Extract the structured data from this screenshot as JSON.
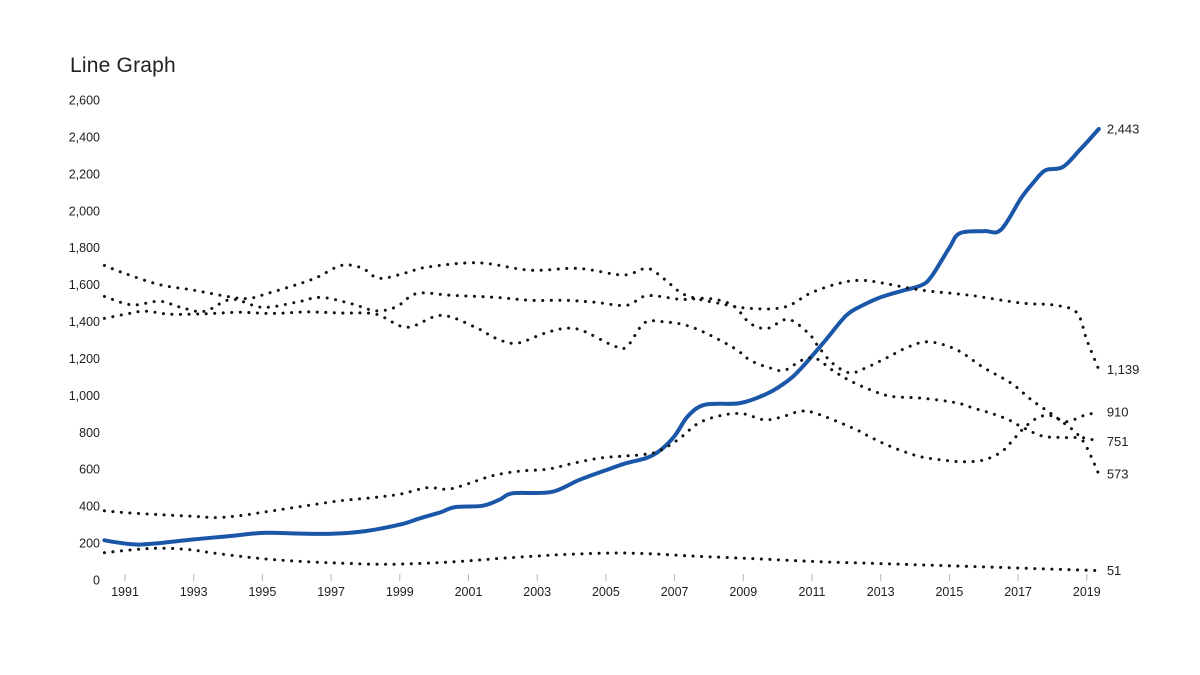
{
  "chart_data": {
    "type": "line",
    "title": "Line Graph",
    "colors": {
      "accent_blue": "#1b57a8",
      "dot_black": "#111111",
      "axis_text": "#212121",
      "tick_mark": "#b5b5b5"
    },
    "x_axis": {
      "range": [
        1990.4,
        2019.35
      ],
      "tick_years": [
        1991,
        1993,
        1995,
        1997,
        1999,
        2001,
        2003,
        2005,
        2007,
        2009,
        2011,
        2013,
        2015,
        2017,
        2019
      ],
      "tick_labels": [
        "1991",
        "1993",
        "1995",
        "1997",
        "1999",
        "2001",
        "2003",
        "2005",
        "2007",
        "2009",
        "2011",
        "2013",
        "2015",
        "2017",
        "2019"
      ]
    },
    "y_axis": {
      "min": 0,
      "max": 2600,
      "step": 200,
      "tick_values": [
        0,
        200,
        400,
        600,
        800,
        1000,
        1200,
        1400,
        1600,
        1800,
        2000,
        2200,
        2400,
        2600
      ],
      "tick_labels": [
        "0",
        "200",
        "400",
        "600",
        "800",
        "1,000",
        "1,200",
        "1,400",
        "1,600",
        "1,800",
        "2,000",
        "2,200",
        "2,400",
        "2,600"
      ]
    },
    "legend_position": "none",
    "grid": false,
    "series": [
      {
        "name": "blue-solid",
        "style": "solid",
        "color": "#1b57a8",
        "end_label": "2,443",
        "end_value": 2443,
        "points": [
          [
            1990.4,
            215
          ],
          [
            1990.9,
            200
          ],
          [
            1991.4,
            192
          ],
          [
            1992,
            200
          ],
          [
            1993,
            220
          ],
          [
            1994,
            237
          ],
          [
            1995,
            255
          ],
          [
            1996,
            252
          ],
          [
            1997,
            250
          ],
          [
            1998,
            265
          ],
          [
            1999,
            300
          ],
          [
            1999.6,
            335
          ],
          [
            2000.2,
            368
          ],
          [
            2000.6,
            395
          ],
          [
            2001.4,
            402
          ],
          [
            2001.9,
            435
          ],
          [
            2002.3,
            470
          ],
          [
            2003.4,
            476
          ],
          [
            2004.2,
            540
          ],
          [
            2005,
            595
          ],
          [
            2005.6,
            633
          ],
          [
            2006.2,
            662
          ],
          [
            2006.6,
            705
          ],
          [
            2007,
            780
          ],
          [
            2007.4,
            890
          ],
          [
            2007.9,
            950
          ],
          [
            2008.9,
            958
          ],
          [
            2009.7,
            1010
          ],
          [
            2010.3,
            1080
          ],
          [
            2010.7,
            1150
          ],
          [
            2011.4,
            1300
          ],
          [
            2012,
            1434
          ],
          [
            2012.5,
            1490
          ],
          [
            2013,
            1532
          ],
          [
            2013.6,
            1565
          ],
          [
            2014.2,
            1598
          ],
          [
            2014.5,
            1650
          ],
          [
            2015,
            1800
          ],
          [
            2015.3,
            1878
          ],
          [
            2016,
            1890
          ],
          [
            2016.5,
            1897
          ],
          [
            2017.1,
            2072
          ],
          [
            2017.5,
            2165
          ],
          [
            2017.8,
            2220
          ],
          [
            2018.3,
            2237
          ],
          [
            2018.8,
            2330
          ],
          [
            2019.35,
            2443
          ]
        ]
      },
      {
        "name": "dotted-1139",
        "style": "dotted",
        "color": "#111111",
        "end_label": "1,139",
        "end_value": 1139,
        "points": [
          [
            1990.4,
            1704
          ],
          [
            1991,
            1660
          ],
          [
            1992,
            1600
          ],
          [
            1993,
            1570
          ],
          [
            1994,
            1535
          ],
          [
            1994.6,
            1525
          ],
          [
            1995.2,
            1555
          ],
          [
            1996,
            1600
          ],
          [
            1996.6,
            1640
          ],
          [
            1997.3,
            1704
          ],
          [
            1997.9,
            1690
          ],
          [
            1998.4,
            1634
          ],
          [
            1999.2,
            1665
          ],
          [
            1999.8,
            1695
          ],
          [
            2001.3,
            1718
          ],
          [
            2002.8,
            1678
          ],
          [
            2004.2,
            1688
          ],
          [
            2005.5,
            1652
          ],
          [
            2006.2,
            1688
          ],
          [
            2006.7,
            1630
          ],
          [
            2007.3,
            1545
          ],
          [
            2008.3,
            1498
          ],
          [
            2009.2,
            1471
          ],
          [
            2010.2,
            1478
          ],
          [
            2011,
            1558
          ],
          [
            2011.9,
            1612
          ],
          [
            2012.5,
            1623
          ],
          [
            2013.1,
            1607
          ],
          [
            2014.2,
            1570
          ],
          [
            2015.6,
            1542
          ],
          [
            2017.1,
            1500
          ],
          [
            2018,
            1490
          ],
          [
            2018.7,
            1450
          ],
          [
            2019,
            1300
          ],
          [
            2019.35,
            1139
          ]
        ]
      },
      {
        "name": "dotted-573",
        "style": "dotted",
        "color": "#111111",
        "end_label": "573",
        "end_value": 573,
        "points": [
          [
            1990.4,
            1536
          ],
          [
            1991.2,
            1490
          ],
          [
            1992,
            1510
          ],
          [
            1992.6,
            1478
          ],
          [
            1993.3,
            1455
          ],
          [
            1994.1,
            1520
          ],
          [
            1995,
            1477
          ],
          [
            1996,
            1505
          ],
          [
            1996.7,
            1531
          ],
          [
            1997.6,
            1496
          ],
          [
            1998.3,
            1458
          ],
          [
            1998.9,
            1480
          ],
          [
            1999.5,
            1552
          ],
          [
            2000.5,
            1542
          ],
          [
            2001.8,
            1531
          ],
          [
            2002.8,
            1515
          ],
          [
            2003.8,
            1515
          ],
          [
            2004.7,
            1504
          ],
          [
            2005.6,
            1488
          ],
          [
            2006.2,
            1540
          ],
          [
            2007.2,
            1520
          ],
          [
            2008,
            1525
          ],
          [
            2008.7,
            1487
          ],
          [
            2009.2,
            1390
          ],
          [
            2009.7,
            1363
          ],
          [
            2010.3,
            1412
          ],
          [
            2010.9,
            1336
          ],
          [
            2011.2,
            1260
          ],
          [
            2011.6,
            1174
          ],
          [
            2012.1,
            1122
          ],
          [
            2012.6,
            1152
          ],
          [
            2013.2,
            1206
          ],
          [
            2013.8,
            1262
          ],
          [
            2014.4,
            1290
          ],
          [
            2015.2,
            1248
          ],
          [
            2016,
            1150
          ],
          [
            2016.8,
            1066
          ],
          [
            2017.4,
            974
          ],
          [
            2017.9,
            909
          ],
          [
            2018.3,
            855
          ],
          [
            2018.7,
            795
          ],
          [
            2019,
            718
          ],
          [
            2019.35,
            573
          ]
        ]
      },
      {
        "name": "dotted-751",
        "style": "dotted",
        "color": "#111111",
        "end_label": "751",
        "end_value": 751,
        "points": [
          [
            1990.4,
            1417
          ],
          [
            1991.1,
            1443
          ],
          [
            1991.6,
            1456
          ],
          [
            1992.3,
            1440
          ],
          [
            1993.3,
            1442
          ],
          [
            1994.3,
            1450
          ],
          [
            1995.3,
            1444
          ],
          [
            1996.3,
            1452
          ],
          [
            1997.3,
            1446
          ],
          [
            1998.3,
            1440
          ],
          [
            1999.2,
            1369
          ],
          [
            2000.2,
            1433
          ],
          [
            2001.2,
            1369
          ],
          [
            2001.8,
            1309
          ],
          [
            2002.4,
            1282
          ],
          [
            2003.2,
            1336
          ],
          [
            2003.8,
            1363
          ],
          [
            2004.3,
            1352
          ],
          [
            2005.2,
            1271
          ],
          [
            2005.6,
            1262
          ],
          [
            2006.1,
            1390
          ],
          [
            2006.6,
            1400
          ],
          [
            2007.5,
            1370
          ],
          [
            2008.7,
            1260
          ],
          [
            2009.2,
            1190
          ],
          [
            2009.8,
            1147
          ],
          [
            2010.2,
            1136
          ],
          [
            2010.7,
            1190
          ],
          [
            2011.1,
            1201
          ],
          [
            2011.6,
            1136
          ],
          [
            2012.1,
            1080
          ],
          [
            2012.7,
            1030
          ],
          [
            2013.3,
            995
          ],
          [
            2014.2,
            985
          ],
          [
            2015.2,
            960
          ],
          [
            2015.7,
            931
          ],
          [
            2016.2,
            904
          ],
          [
            2016.7,
            870
          ],
          [
            2017.1,
            830
          ],
          [
            2017.7,
            780
          ],
          [
            2018.3,
            772
          ],
          [
            2018.9,
            770
          ],
          [
            2019.35,
            751
          ]
        ]
      },
      {
        "name": "dotted-910",
        "style": "dotted",
        "color": "#111111",
        "end_label": "910",
        "end_value": 910,
        "points": [
          [
            1990.4,
            375
          ],
          [
            1991,
            365
          ],
          [
            1992,
            354
          ],
          [
            1993,
            345
          ],
          [
            1993.7,
            338
          ],
          [
            1994.4,
            350
          ],
          [
            1995.3,
            375
          ],
          [
            1996.3,
            403
          ],
          [
            1997.3,
            430
          ],
          [
            1998.2,
            446
          ],
          [
            1999,
            465
          ],
          [
            1999.8,
            500
          ],
          [
            2000.4,
            492
          ],
          [
            2001,
            522
          ],
          [
            2001.7,
            565
          ],
          [
            2002.5,
            590
          ],
          [
            2003.3,
            600
          ],
          [
            2004,
            630
          ],
          [
            2004.8,
            660
          ],
          [
            2005.5,
            671
          ],
          [
            2006,
            678
          ],
          [
            2006.5,
            695
          ],
          [
            2007.1,
            760
          ],
          [
            2007.7,
            850
          ],
          [
            2008.4,
            893
          ],
          [
            2009,
            900
          ],
          [
            2009.6,
            868
          ],
          [
            2010.1,
            882
          ],
          [
            2010.7,
            915
          ],
          [
            2011.2,
            897
          ],
          [
            2012.2,
            822
          ],
          [
            2012.7,
            774
          ],
          [
            2013.2,
            730
          ],
          [
            2013.7,
            694
          ],
          [
            2014.2,
            666
          ],
          [
            2014.8,
            650
          ],
          [
            2015.4,
            640
          ],
          [
            2016,
            650
          ],
          [
            2016.5,
            692
          ],
          [
            2016.8,
            747
          ],
          [
            2017.1,
            810
          ],
          [
            2017.5,
            872
          ],
          [
            2017.9,
            892
          ],
          [
            2018.4,
            858
          ],
          [
            2018.9,
            890
          ],
          [
            2019.35,
            910
          ]
        ]
      },
      {
        "name": "dotted-51",
        "style": "dotted",
        "color": "#111111",
        "end_label": "51",
        "end_value": 51,
        "points": [
          [
            1990.4,
            148
          ],
          [
            1991.3,
            165
          ],
          [
            1992,
            172
          ],
          [
            1992.8,
            166
          ],
          [
            1993.5,
            148
          ],
          [
            1994.5,
            125
          ],
          [
            1995.5,
            108
          ],
          [
            1996.5,
            97
          ],
          [
            1997.5,
            90
          ],
          [
            1998.6,
            85
          ],
          [
            1999.9,
            92
          ],
          [
            2001,
            104
          ],
          [
            2002,
            118
          ],
          [
            2003,
            130
          ],
          [
            2004,
            140
          ],
          [
            2005.3,
            146
          ],
          [
            2006.3,
            142
          ],
          [
            2007.5,
            130
          ],
          [
            2008.5,
            122
          ],
          [
            2009.5,
            114
          ],
          [
            2010.5,
            105
          ],
          [
            2011.5,
            97
          ],
          [
            2012.5,
            92
          ],
          [
            2013.5,
            86
          ],
          [
            2014.5,
            80
          ],
          [
            2015.5,
            74
          ],
          [
            2016.5,
            68
          ],
          [
            2017.5,
            62
          ],
          [
            2018.5,
            56
          ],
          [
            2019.35,
            51
          ]
        ]
      }
    ]
  }
}
